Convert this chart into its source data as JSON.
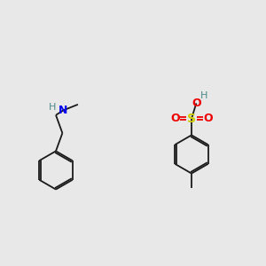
{
  "bg_color": "#e8e8e8",
  "bond_color": "#1a1a1a",
  "N_color": "#0000ee",
  "O_color": "#ee0000",
  "S_color": "#cccc00",
  "H_color": "#4a8a8a",
  "lw": 1.3,
  "figsize": [
    3.0,
    3.0
  ],
  "dpi": 100,
  "xlim": [
    0,
    10
  ],
  "ylim": [
    0,
    10
  ]
}
